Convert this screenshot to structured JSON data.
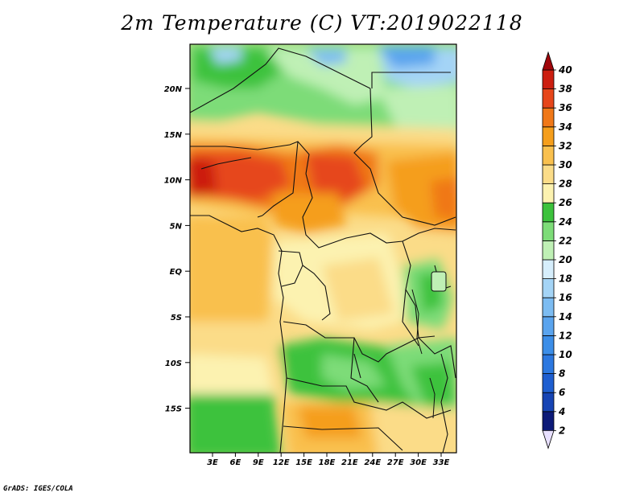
{
  "title": "2m Temperature (C) VT:2019022118",
  "credit": "GrADS: IGES/COLA",
  "map": {
    "lat_labels": [
      "20N",
      "15N",
      "10N",
      "5N",
      "EQ",
      "5S",
      "10S",
      "15S"
    ],
    "lon_labels": [
      "3E",
      "6E",
      "9E",
      "12E",
      "15E",
      "18E",
      "21E",
      "24E",
      "27E",
      "30E",
      "33E"
    ]
  },
  "colorbar": {
    "levels": [
      "2",
      "4",
      "6",
      "8",
      "10",
      "12",
      "14",
      "16",
      "18",
      "20",
      "22",
      "24",
      "26",
      "28",
      "30",
      "32",
      "34",
      "36",
      "38",
      "40"
    ],
    "colors": [
      "#0c1a78",
      "#1644b4",
      "#1e5ed0",
      "#2c78e0",
      "#3c8ee8",
      "#5aa4ee",
      "#7cbcf2",
      "#a4d4f6",
      "#d6eefc",
      "#bff0b5",
      "#7ddc78",
      "#3cc23c",
      "#fcf2b0",
      "#fbdc88",
      "#f9c04e",
      "#f59e1c",
      "#f07818",
      "#e6461a",
      "#cc1e10",
      "#a0060a"
    ],
    "under_color": "#e8e0ff",
    "over_color": "#a0060a"
  }
}
